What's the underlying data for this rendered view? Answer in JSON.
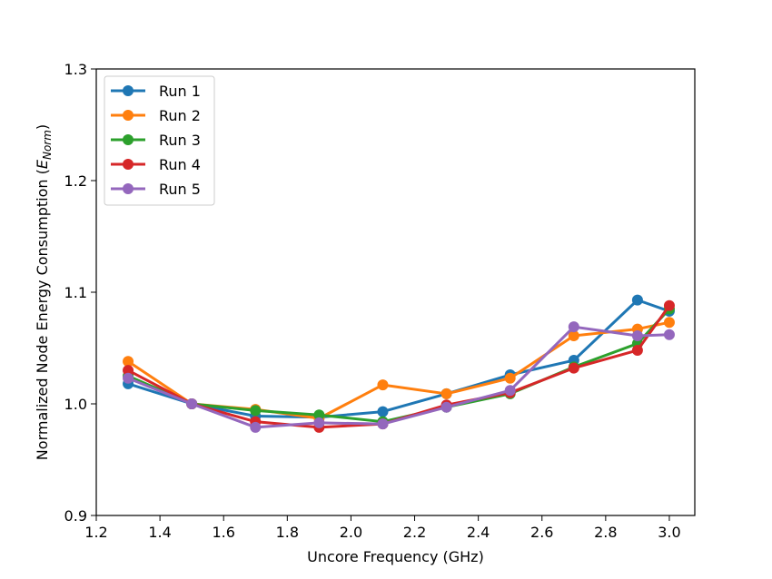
{
  "chart_data": {
    "type": "line",
    "title": "",
    "xlabel": "Uncore Frequency (GHz)",
    "ylabel": {
      "prefix": "Normalized Node Energy Consumption (",
      "var": "E",
      "sub": "Norm",
      "suffix": ")"
    },
    "xlim": [
      1.2,
      3.08
    ],
    "ylim": [
      0.9,
      1.3
    ],
    "xticks": [
      1.2,
      1.4,
      1.6,
      1.8,
      2.0,
      2.2,
      2.4,
      2.6,
      2.8,
      3.0
    ],
    "xtick_labels": [
      "1.2",
      "1.4",
      "1.6",
      "1.8",
      "2.0",
      "2.2",
      "2.4",
      "2.6",
      "2.8",
      "3.0"
    ],
    "yticks": [
      0.9,
      1.0,
      1.1,
      1.2,
      1.3
    ],
    "ytick_labels": [
      "0.9",
      "1.0",
      "1.1",
      "1.2",
      "1.3"
    ],
    "grid": false,
    "legend_position": "upper-left",
    "x": [
      1.3,
      1.5,
      1.7,
      1.9,
      2.1,
      2.3,
      2.5,
      2.7,
      2.9,
      3.0
    ],
    "series": [
      {
        "name": "Run 1",
        "color": "#1f77b4",
        "values": [
          1.018,
          1.0,
          0.989,
          0.988,
          0.993,
          1.009,
          1.026,
          1.039,
          1.093,
          1.083
        ]
      },
      {
        "name": "Run 2",
        "color": "#ff7f0e",
        "values": [
          1.038,
          1.0,
          0.995,
          0.987,
          1.017,
          1.009,
          1.023,
          1.061,
          1.067,
          1.073
        ]
      },
      {
        "name": "Run 3",
        "color": "#2ca02c",
        "values": [
          1.025,
          1.0,
          0.994,
          0.99,
          0.984,
          0.997,
          1.009,
          1.033,
          1.054,
          1.085
        ]
      },
      {
        "name": "Run 4",
        "color": "#d62728",
        "values": [
          1.03,
          1.0,
          0.984,
          0.979,
          0.982,
          0.999,
          1.01,
          1.032,
          1.048,
          1.088
        ]
      },
      {
        "name": "Run 5",
        "color": "#9467bd",
        "values": [
          1.023,
          1.0,
          0.979,
          0.983,
          0.982,
          0.997,
          1.012,
          1.069,
          1.061,
          1.062
        ]
      }
    ]
  }
}
